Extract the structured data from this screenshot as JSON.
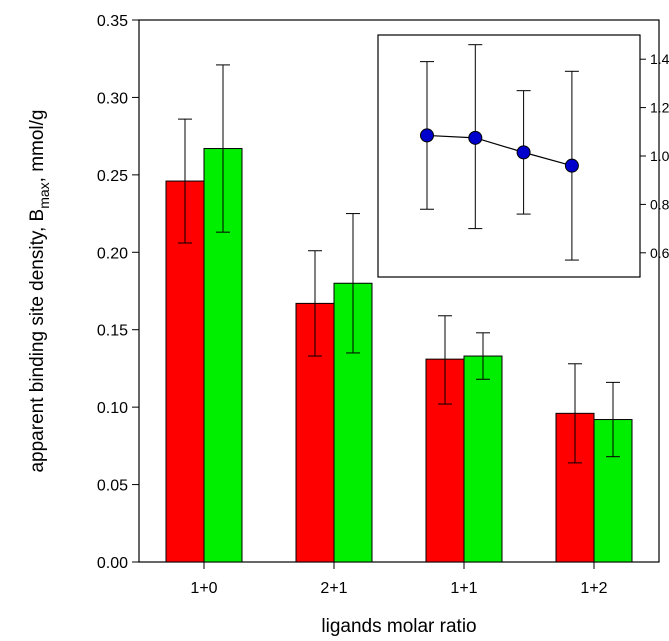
{
  "chart_data": [
    {
      "type": "bar",
      "categories": [
        "1+0",
        "2+1",
        "1+1",
        "1+2"
      ],
      "series": [
        {
          "color": "#ff0000",
          "values": [
            0.246,
            0.167,
            0.131,
            0.096
          ],
          "error_low": [
            0.206,
            0.133,
            0.102,
            0.064
          ],
          "error_high": [
            0.286,
            0.201,
            0.159,
            0.128
          ]
        },
        {
          "color": "#00ee00",
          "values": [
            0.267,
            0.18,
            0.133,
            0.092
          ],
          "error_low": [
            0.213,
            0.135,
            0.118,
            0.068
          ],
          "error_high": [
            0.321,
            0.225,
            0.148,
            0.116
          ]
        }
      ],
      "xlabel": "ligands molar ratio",
      "ylabel_prefix": "apparent binding site density, B",
      "ylabel_sub": "max",
      "ylabel_suffix": ", mmol/g",
      "ylim": [
        0,
        0.35
      ],
      "yticks": [
        "0.00",
        "0.05",
        "0.10",
        "0.15",
        "0.20",
        "0.25",
        "0.30",
        "0.35"
      ],
      "grid": false
    },
    {
      "type": "line",
      "placement": "top-right inset",
      "x": [
        1,
        2,
        3,
        4
      ],
      "y": [
        1.085,
        1.075,
        1.015,
        0.96
      ],
      "error_low": [
        0.78,
        0.7,
        0.76,
        0.57
      ],
      "error_high": [
        1.39,
        1.46,
        1.27,
        1.35
      ],
      "marker_color": "#0000cc",
      "ylim": [
        0.5,
        1.5
      ],
      "yticks": [
        "0.6",
        "0.8",
        "1.0",
        "1.2",
        "1.4"
      ],
      "yaxis_side": "right"
    }
  ]
}
